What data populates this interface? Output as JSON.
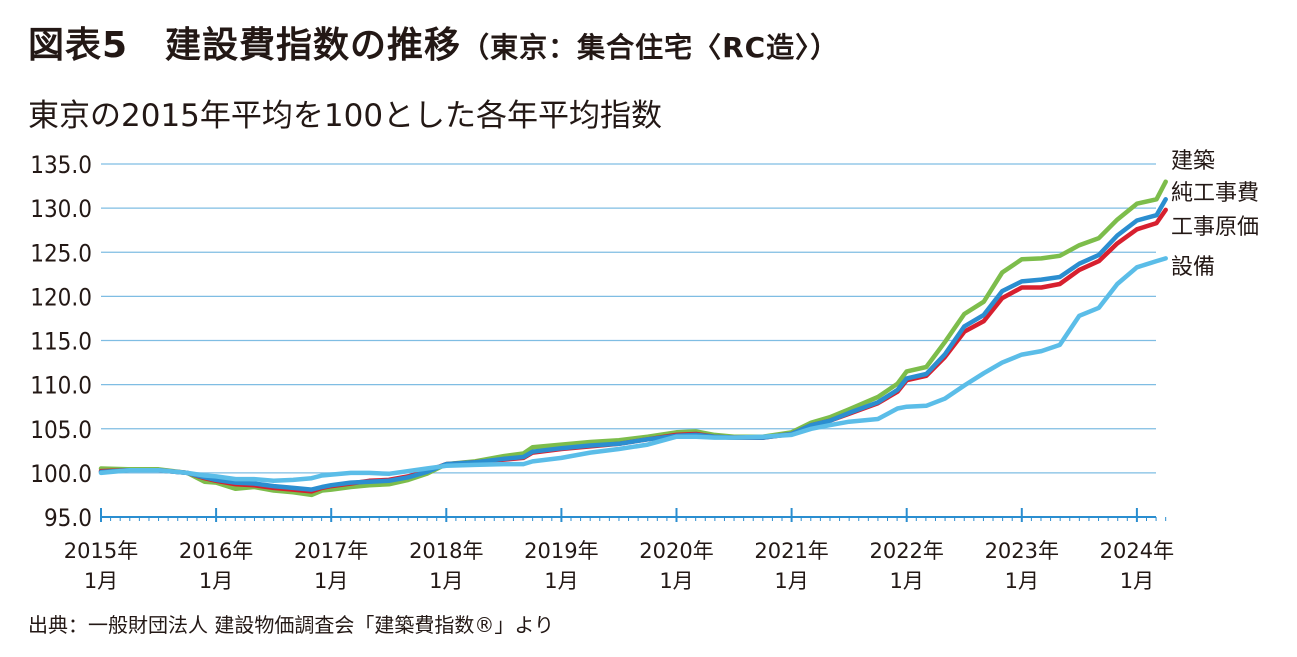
{
  "header": {
    "title": "図表5　建設費指数の推移",
    "title_sub": "（東京：集合住宅〈RC造〉）",
    "subtitle": "東京の2015年平均を100とした各年平均指数",
    "source": "出典：一般財団法人 建設物価調査会「建築費指数®」より"
  },
  "chart_data": {
    "type": "line",
    "title": "図表5　建設費指数の推移（東京：集合住宅〈RC造〉）",
    "subtitle": "東京の2015年平均を100とした各年平均指数",
    "ylim": [
      95.0,
      135.0
    ],
    "yticks": [
      "135.0",
      "130.0",
      "125.0",
      "120.0",
      "115.0",
      "110.0",
      "105.0",
      "100.0",
      "95.0"
    ],
    "xlim": [
      2015.0,
      2024.25
    ],
    "xticks": [
      {
        "line1": "2015年",
        "line2": "1月"
      },
      {
        "line1": "2016年",
        "line2": "1月"
      },
      {
        "line1": "2017年",
        "line2": "1月"
      },
      {
        "line1": "2018年",
        "line2": "1月"
      },
      {
        "line1": "2019年",
        "line2": "1月"
      },
      {
        "line1": "2020年",
        "line2": "1月"
      },
      {
        "line1": "2021年",
        "line2": "1月"
      },
      {
        "line1": "2022年",
        "line2": "1月"
      },
      {
        "line1": "2023年",
        "line2": "1月"
      },
      {
        "line1": "2024年",
        "line2": "1月"
      }
    ],
    "grid": true,
    "legend_position": "right",
    "series": [
      {
        "name": "建築",
        "color": "#7dbd4b",
        "points": [
          [
            2015.0,
            100.5
          ],
          [
            2015.25,
            100.4
          ],
          [
            2015.5,
            100.4
          ],
          [
            2015.75,
            100.0
          ],
          [
            2015.9,
            99.0
          ],
          [
            2016.0,
            98.9
          ],
          [
            2016.17,
            98.2
          ],
          [
            2016.33,
            98.4
          ],
          [
            2016.5,
            98.0
          ],
          [
            2016.67,
            97.8
          ],
          [
            2016.83,
            97.5
          ],
          [
            2016.92,
            98.0
          ],
          [
            2017.0,
            98.1
          ],
          [
            2017.17,
            98.4
          ],
          [
            2017.33,
            98.6
          ],
          [
            2017.5,
            98.7
          ],
          [
            2017.67,
            99.2
          ],
          [
            2017.83,
            99.9
          ],
          [
            2018.0,
            101.0
          ],
          [
            2018.25,
            101.3
          ],
          [
            2018.5,
            101.9
          ],
          [
            2018.67,
            102.2
          ],
          [
            2018.75,
            102.9
          ],
          [
            2019.0,
            103.2
          ],
          [
            2019.25,
            103.5
          ],
          [
            2019.5,
            103.7
          ],
          [
            2019.75,
            104.1
          ],
          [
            2020.0,
            104.6
          ],
          [
            2020.17,
            104.7
          ],
          [
            2020.33,
            104.3
          ],
          [
            2020.5,
            104.1
          ],
          [
            2020.75,
            104.1
          ],
          [
            2021.0,
            104.6
          ],
          [
            2021.17,
            105.7
          ],
          [
            2021.33,
            106.3
          ],
          [
            2021.5,
            107.2
          ],
          [
            2021.75,
            108.6
          ],
          [
            2021.92,
            110.1
          ],
          [
            2022.0,
            111.5
          ],
          [
            2022.17,
            112.0
          ],
          [
            2022.33,
            114.8
          ],
          [
            2022.5,
            118.0
          ],
          [
            2022.67,
            119.4
          ],
          [
            2022.83,
            122.7
          ],
          [
            2023.0,
            124.2
          ],
          [
            2023.17,
            124.3
          ],
          [
            2023.33,
            124.6
          ],
          [
            2023.5,
            125.8
          ],
          [
            2023.67,
            126.6
          ],
          [
            2023.83,
            128.7
          ],
          [
            2024.0,
            130.5
          ],
          [
            2024.17,
            131.0
          ],
          [
            2024.25,
            133.0
          ]
        ]
      },
      {
        "name": "純工事費",
        "color": "#2b8ed0",
        "points": [
          [
            2015.0,
            100.1
          ],
          [
            2015.25,
            100.3
          ],
          [
            2015.5,
            100.3
          ],
          [
            2015.75,
            100.0
          ],
          [
            2015.9,
            99.5
          ],
          [
            2016.0,
            99.2
          ],
          [
            2016.17,
            98.9
          ],
          [
            2016.33,
            98.8
          ],
          [
            2016.5,
            98.5
          ],
          [
            2016.67,
            98.3
          ],
          [
            2016.83,
            98.1
          ],
          [
            2016.92,
            98.4
          ],
          [
            2017.0,
            98.6
          ],
          [
            2017.17,
            98.9
          ],
          [
            2017.33,
            99.0
          ],
          [
            2017.5,
            99.1
          ],
          [
            2017.67,
            99.5
          ],
          [
            2017.83,
            100.1
          ],
          [
            2018.0,
            101.0
          ],
          [
            2018.25,
            101.2
          ],
          [
            2018.5,
            101.6
          ],
          [
            2018.67,
            101.8
          ],
          [
            2018.75,
            102.4
          ],
          [
            2019.0,
            102.8
          ],
          [
            2019.25,
            103.1
          ],
          [
            2019.5,
            103.3
          ],
          [
            2019.75,
            103.8
          ],
          [
            2020.0,
            104.2
          ],
          [
            2020.17,
            104.3
          ],
          [
            2020.33,
            104.1
          ],
          [
            2020.5,
            104.0
          ],
          [
            2020.75,
            104.0
          ],
          [
            2021.0,
            104.4
          ],
          [
            2021.17,
            105.4
          ],
          [
            2021.33,
            105.9
          ],
          [
            2021.5,
            106.8
          ],
          [
            2021.75,
            108.0
          ],
          [
            2021.92,
            109.4
          ],
          [
            2022.0,
            110.7
          ],
          [
            2022.17,
            111.2
          ],
          [
            2022.33,
            113.4
          ],
          [
            2022.5,
            116.6
          ],
          [
            2022.67,
            117.9
          ],
          [
            2022.83,
            120.6
          ],
          [
            2023.0,
            121.7
          ],
          [
            2023.17,
            121.9
          ],
          [
            2023.33,
            122.2
          ],
          [
            2023.5,
            123.7
          ],
          [
            2023.67,
            124.7
          ],
          [
            2023.83,
            126.9
          ],
          [
            2024.0,
            128.6
          ],
          [
            2024.17,
            129.2
          ],
          [
            2024.25,
            131.0
          ]
        ]
      },
      {
        "name": "工事原価",
        "color": "#d7202f",
        "points": [
          [
            2015.0,
            100.2
          ],
          [
            2015.25,
            100.3
          ],
          [
            2015.5,
            100.3
          ],
          [
            2015.75,
            100.0
          ],
          [
            2015.9,
            99.4
          ],
          [
            2016.0,
            99.1
          ],
          [
            2016.17,
            98.7
          ],
          [
            2016.33,
            98.6
          ],
          [
            2016.5,
            98.3
          ],
          [
            2016.67,
            98.1
          ],
          [
            2016.83,
            97.9
          ],
          [
            2016.92,
            98.3
          ],
          [
            2017.0,
            98.5
          ],
          [
            2017.17,
            98.8
          ],
          [
            2017.33,
            99.1
          ],
          [
            2017.5,
            99.2
          ],
          [
            2017.67,
            99.6
          ],
          [
            2017.83,
            100.2
          ],
          [
            2018.0,
            101.0
          ],
          [
            2018.25,
            101.2
          ],
          [
            2018.5,
            101.5
          ],
          [
            2018.67,
            101.7
          ],
          [
            2018.75,
            102.3
          ],
          [
            2019.0,
            102.7
          ],
          [
            2019.25,
            103.0
          ],
          [
            2019.5,
            103.3
          ],
          [
            2019.75,
            103.8
          ],
          [
            2020.0,
            104.3
          ],
          [
            2020.17,
            104.4
          ],
          [
            2020.33,
            104.1
          ],
          [
            2020.5,
            104.0
          ],
          [
            2020.75,
            104.0
          ],
          [
            2021.0,
            104.4
          ],
          [
            2021.17,
            105.4
          ],
          [
            2021.33,
            105.9
          ],
          [
            2021.5,
            106.7
          ],
          [
            2021.75,
            107.9
          ],
          [
            2021.92,
            109.2
          ],
          [
            2022.0,
            110.5
          ],
          [
            2022.17,
            111.0
          ],
          [
            2022.33,
            113.1
          ],
          [
            2022.5,
            116.0
          ],
          [
            2022.67,
            117.2
          ],
          [
            2022.83,
            119.8
          ],
          [
            2023.0,
            121.0
          ],
          [
            2023.17,
            121.0
          ],
          [
            2023.33,
            121.4
          ],
          [
            2023.5,
            123.0
          ],
          [
            2023.67,
            124.0
          ],
          [
            2023.83,
            126.0
          ],
          [
            2024.0,
            127.6
          ],
          [
            2024.17,
            128.3
          ],
          [
            2024.25,
            129.8
          ]
        ]
      },
      {
        "name": "設備",
        "color": "#5bbde8",
        "points": [
          [
            2015.0,
            100.0
          ],
          [
            2015.25,
            100.3
          ],
          [
            2015.5,
            100.3
          ],
          [
            2015.75,
            100.0
          ],
          [
            2015.9,
            99.7
          ],
          [
            2016.0,
            99.6
          ],
          [
            2016.17,
            99.3
          ],
          [
            2016.33,
            99.3
          ],
          [
            2016.5,
            99.1
          ],
          [
            2016.67,
            99.2
          ],
          [
            2016.83,
            99.4
          ],
          [
            2016.92,
            99.7
          ],
          [
            2017.0,
            99.8
          ],
          [
            2017.17,
            100.0
          ],
          [
            2017.33,
            100.0
          ],
          [
            2017.5,
            99.9
          ],
          [
            2017.67,
            100.2
          ],
          [
            2017.83,
            100.5
          ],
          [
            2018.0,
            100.8
          ],
          [
            2018.25,
            100.9
          ],
          [
            2018.5,
            101.0
          ],
          [
            2018.67,
            101.0
          ],
          [
            2018.75,
            101.3
          ],
          [
            2019.0,
            101.7
          ],
          [
            2019.25,
            102.3
          ],
          [
            2019.5,
            102.7
          ],
          [
            2019.75,
            103.2
          ],
          [
            2020.0,
            104.1
          ],
          [
            2020.17,
            104.1
          ],
          [
            2020.33,
            104.0
          ],
          [
            2020.5,
            104.0
          ],
          [
            2020.75,
            104.1
          ],
          [
            2021.0,
            104.3
          ],
          [
            2021.17,
            105.0
          ],
          [
            2021.33,
            105.4
          ],
          [
            2021.5,
            105.8
          ],
          [
            2021.75,
            106.1
          ],
          [
            2021.92,
            107.3
          ],
          [
            2022.0,
            107.5
          ],
          [
            2022.17,
            107.6
          ],
          [
            2022.33,
            108.4
          ],
          [
            2022.5,
            109.9
          ],
          [
            2022.67,
            111.3
          ],
          [
            2022.83,
            112.5
          ],
          [
            2023.0,
            113.4
          ],
          [
            2023.17,
            113.8
          ],
          [
            2023.33,
            114.5
          ],
          [
            2023.5,
            117.8
          ],
          [
            2023.67,
            118.7
          ],
          [
            2023.83,
            121.4
          ],
          [
            2024.0,
            123.3
          ],
          [
            2024.17,
            124.0
          ],
          [
            2024.25,
            124.3
          ]
        ]
      }
    ]
  }
}
